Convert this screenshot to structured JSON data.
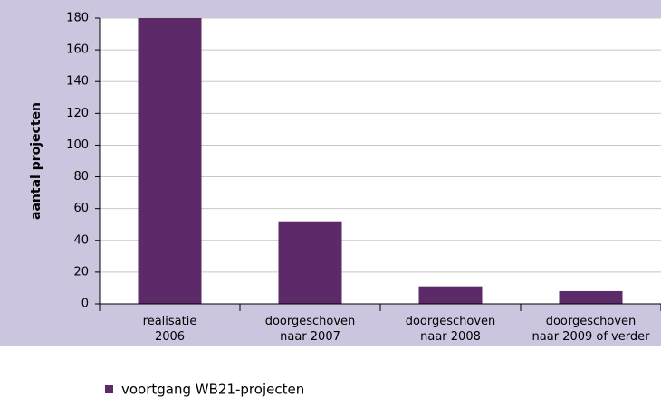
{
  "chart_data": {
    "type": "bar",
    "y_label": "aantal projecten",
    "categories": [
      "realisatie 2006",
      "doorgeschoven naar 2007",
      "doorgeschoven naar 2008",
      "doorgeschoven naar 2009 of verder"
    ],
    "series": [
      {
        "name": "voortgang WB21-projecten",
        "color": "#5c2a68",
        "values": [
          180,
          52,
          11,
          8
        ]
      }
    ],
    "ylim": [
      0,
      180
    ],
    "yticks": [
      0,
      20,
      40,
      60,
      80,
      100,
      120,
      140,
      160,
      180
    ],
    "grid": true
  }
}
